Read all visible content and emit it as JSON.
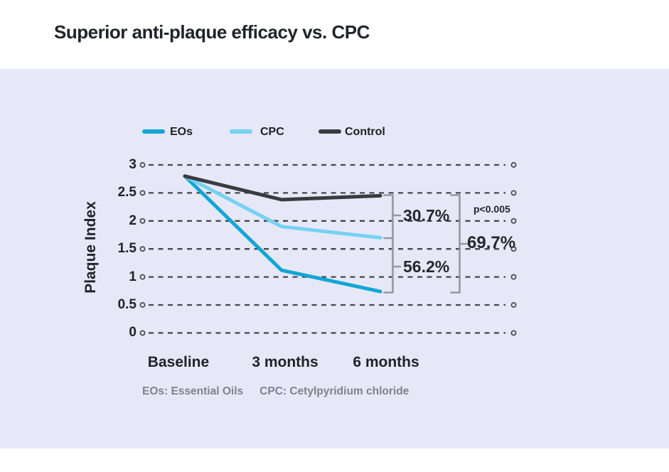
{
  "title": "Superior anti-plaque efficacy vs. CPC",
  "legend": {
    "items": [
      {
        "label": "EOs",
        "color": "#11a6d4"
      },
      {
        "label": "CPC",
        "color": "#74d2f2"
      },
      {
        "label": "Control",
        "color": "#3a3a41"
      }
    ]
  },
  "chart_data": {
    "type": "line",
    "x": [
      "Baseline",
      "3 months",
      "6 months"
    ],
    "series": [
      {
        "name": "EOs",
        "color": "#11a6d4",
        "values": [
          2.8,
          1.12,
          0.74
        ]
      },
      {
        "name": "CPC",
        "color": "#74d2f2",
        "values": [
          2.8,
          1.9,
          1.7
        ]
      },
      {
        "name": "Control",
        "color": "#3a3a41",
        "values": [
          2.8,
          2.38,
          2.45
        ]
      }
    ],
    "ylabel": "Plaque Index",
    "yticks": [
      3,
      2.5,
      2,
      1.5,
      1,
      0.5,
      0
    ],
    "ytick_labels": [
      "3",
      "2.5",
      "2",
      "1.5",
      "1",
      "0.5",
      "0"
    ],
    "ylim": [
      0,
      3
    ],
    "grid": "horizontal-dashed-with-end-circles",
    "legend_position": "top",
    "annotations": {
      "cpc_vs_control": "30.7%",
      "eos_vs_cpc": "56.2%",
      "eos_vs_control": "69.7%",
      "significance": "p<0.005"
    }
  },
  "footnote": {
    "eos": "EOs: Essential Oils",
    "cpc": "CPC: Cetylpyridium chloride"
  },
  "colors": {
    "panel_background": "#e6e8f7",
    "gridline": "#46464d",
    "bracket": "#97979f",
    "text_dark": "#21242a",
    "footnote_gray": "#7f828c"
  }
}
